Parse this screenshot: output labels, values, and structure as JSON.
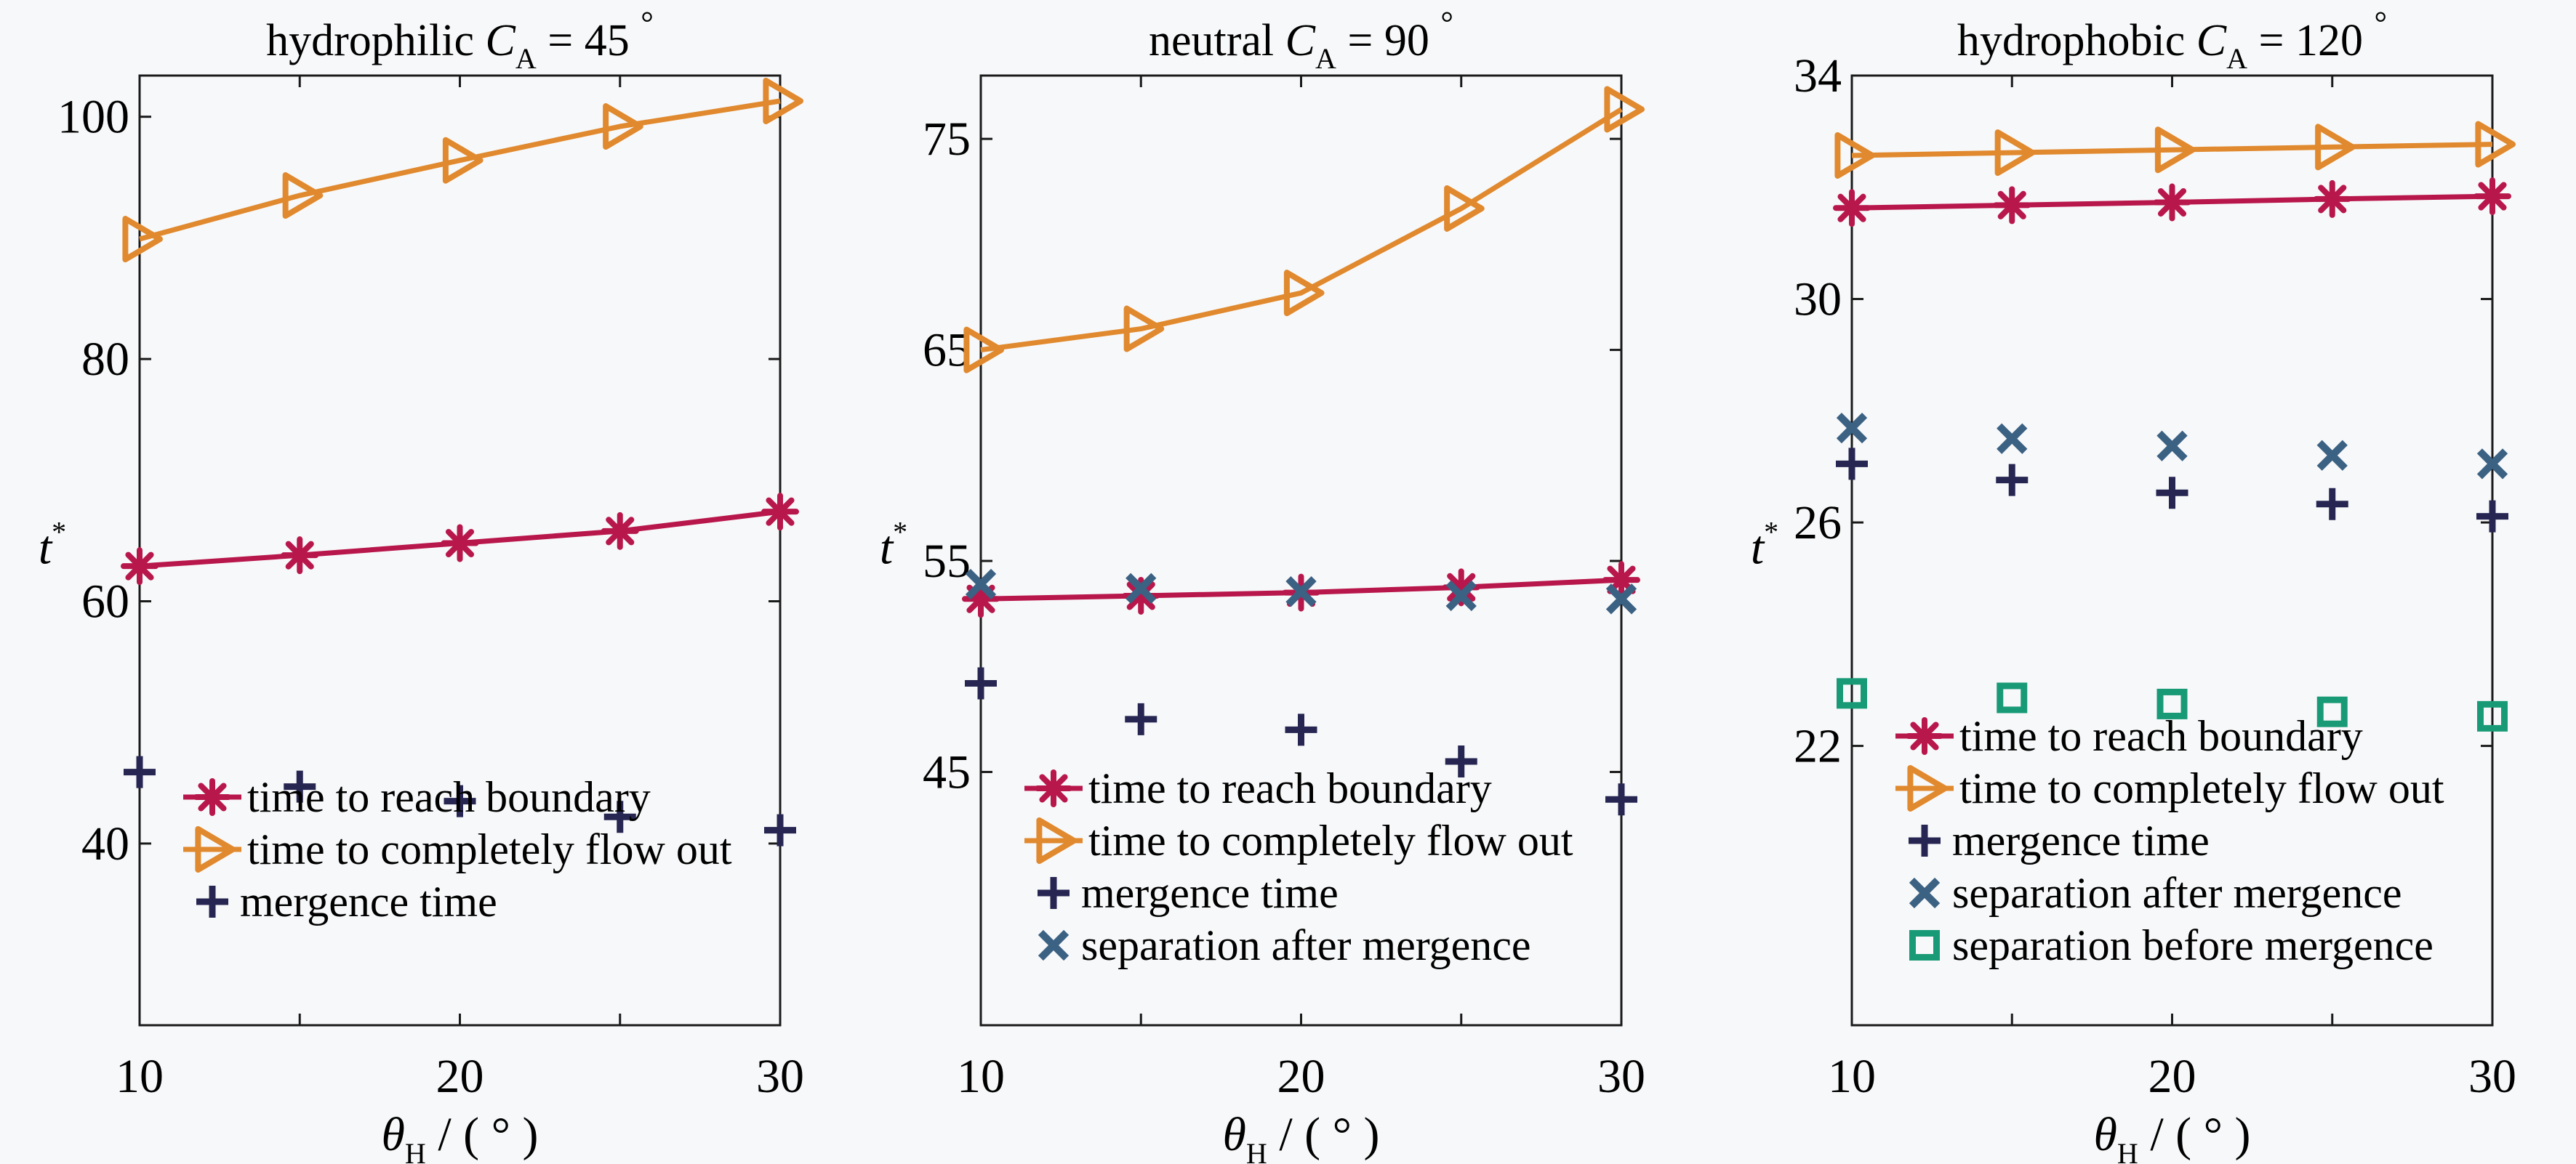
{
  "figure": {
    "background": "#f7f8f9"
  },
  "styles": {
    "reach_boundary": {
      "color": "#b8174c",
      "marker": "asterisk",
      "line": true
    },
    "flow_out": {
      "color": "#e0892e",
      "marker": "triangle-right",
      "line": true
    },
    "mergence": {
      "color": "#272653",
      "marker": "plus",
      "line": false
    },
    "separation_after": {
      "color": "#3b6183",
      "marker": "x",
      "line": false
    },
    "separation_before": {
      "color": "#199a77",
      "marker": "square",
      "line": false
    }
  },
  "chart_data": [
    {
      "type": "line",
      "title": {
        "prefix": "hydrophilic",
        "symbol": "C",
        "subscript": "A",
        "equals": "=",
        "value": "45",
        "unit": "°"
      },
      "xlabel": {
        "symbol": "θ",
        "subscript": "H",
        "rest": "/ ( ° )"
      },
      "ylabel": {
        "symbol": "t",
        "superscript": "*"
      },
      "x": [
        10,
        15,
        20,
        25,
        30
      ],
      "xlim": [
        10,
        30
      ],
      "xticks": [
        10,
        20,
        30
      ],
      "xminor": [
        15,
        25
      ],
      "ylim": [
        25,
        103.4
      ],
      "yticks": [
        40,
        60,
        80,
        100
      ],
      "grid": false,
      "legend_position": "bottom-left",
      "series": [
        {
          "key": "reach_boundary",
          "name": "time to reach boundary",
          "values": [
            62.9,
            63.8,
            64.8,
            65.8,
            67.4
          ]
        },
        {
          "key": "flow_out",
          "name": "time to completely flow out",
          "values": [
            89.9,
            93.5,
            96.4,
            99.2,
            101.3
          ]
        },
        {
          "key": "mergence",
          "name": "mergence time",
          "values": [
            45.9,
            44.7,
            43.5,
            42.2,
            41.1
          ]
        }
      ]
    },
    {
      "type": "line",
      "title": {
        "prefix": "neutral",
        "symbol": "C",
        "subscript": "A",
        "equals": "=",
        "value": "90",
        "unit": "°"
      },
      "xlabel": {
        "symbol": "θ",
        "subscript": "H",
        "rest": "/ ( ° )"
      },
      "ylabel": {
        "symbol": "t",
        "superscript": "*"
      },
      "x": [
        10,
        15,
        20,
        25,
        30
      ],
      "xlim": [
        10,
        30
      ],
      "xticks": [
        10,
        20,
        30
      ],
      "xminor": [
        15,
        25
      ],
      "ylim": [
        33,
        78
      ],
      "yticks": [
        45,
        55,
        65,
        75
      ],
      "grid": false,
      "legend_position": "bottom-left",
      "series": [
        {
          "key": "reach_boundary",
          "name": "time to reach boundary",
          "values": [
            53.2,
            53.35,
            53.5,
            53.75,
            54.1
          ]
        },
        {
          "key": "flow_out",
          "name": "time to completely flow out",
          "values": [
            65.0,
            66.0,
            67.7,
            71.7,
            76.4
          ]
        },
        {
          "key": "mergence",
          "name": "mergence time",
          "values": [
            49.2,
            47.5,
            47.0,
            45.5,
            43.7
          ]
        },
        {
          "key": "separation_after",
          "name": "separation after mergence",
          "values": [
            53.9,
            53.7,
            53.55,
            53.35,
            53.2
          ]
        }
      ]
    },
    {
      "type": "line",
      "title": {
        "prefix": "hydrophobic",
        "symbol": "C",
        "subscript": "A",
        "equals": "=",
        "value": "120",
        "unit": "°"
      },
      "xlabel": {
        "symbol": "θ",
        "subscript": "H",
        "rest": "/ ( ° )"
      },
      "ylabel": {
        "symbol": "t",
        "superscript": "*"
      },
      "x": [
        10,
        15,
        20,
        25,
        30
      ],
      "xlim": [
        10,
        30
      ],
      "xticks": [
        10,
        20,
        30
      ],
      "xminor": [
        15,
        25
      ],
      "ylim": [
        17,
        34
      ],
      "yticks": [
        22,
        26,
        30,
        34
      ],
      "grid": false,
      "legend_position": "bottom-left",
      "series": [
        {
          "key": "reach_boundary",
          "name": "time to reach boundary",
          "values": [
            31.63,
            31.68,
            31.73,
            31.79,
            31.84
          ]
        },
        {
          "key": "flow_out",
          "name": "time to completely flow out",
          "values": [
            32.57,
            32.62,
            32.67,
            32.72,
            32.77
          ]
        },
        {
          "key": "mergence",
          "name": "mergence time",
          "values": [
            27.05,
            26.76,
            26.53,
            26.33,
            26.11
          ]
        },
        {
          "key": "separation_after",
          "name": "separation after mergence",
          "values": [
            27.69,
            27.5,
            27.37,
            27.2,
            27.05
          ]
        },
        {
          "key": "separation_before",
          "name": "separation before mergence",
          "values": [
            22.94,
            22.86,
            22.75,
            22.61,
            22.53
          ]
        }
      ]
    }
  ]
}
